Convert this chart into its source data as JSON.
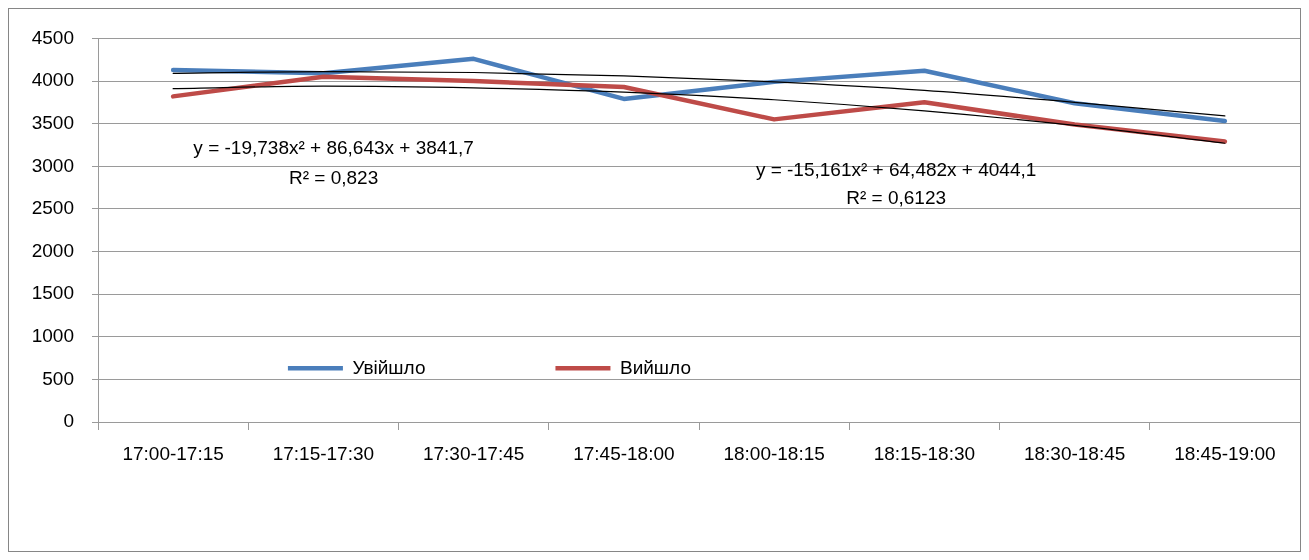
{
  "chart_data": {
    "type": "line",
    "categories": [
      "17:00-17:15",
      "17:15-17:30",
      "17:30-17:45",
      "17:45-18:00",
      "18:00-18:15",
      "18:15-18:30",
      "18:30-18:45",
      "18:45-19:00"
    ],
    "series": [
      {
        "name": "Увійшло",
        "color": "#4a7ebb",
        "values": [
          4130,
          4090,
          4260,
          3790,
          3990,
          4120,
          3740,
          3530
        ]
      },
      {
        "name": "Вийшло",
        "color": "#be4b48",
        "values": [
          3820,
          4050,
          4000,
          3930,
          3550,
          3750,
          3490,
          3290
        ]
      },
      {
        "type": "line",
        "color": "#000000",
        "values": [
          4090,
          4110,
          4100,
          4060,
          3990,
          3890,
          3750,
          3590
        ]
      },
      {
        "type": "line",
        "color": "#000000",
        "values": [
          3910,
          3940,
          3920,
          3870,
          3780,
          3650,
          3480,
          3270
        ]
      }
    ],
    "ylim": [
      0,
      4500
    ],
    "yticks": [
      0,
      500,
      1000,
      1500,
      2000,
      2500,
      3000,
      3500,
      4000,
      4500
    ],
    "grid": "y",
    "legend": "bottom left",
    "marker": "none",
    "annotations": [
      "y = -19,738x² + 86,643x + 3841,7",
      "R² = 0,823",
      "y = -15,161x² + 64,482x + 4044,1",
      "R² = 0,6123"
    ]
  }
}
